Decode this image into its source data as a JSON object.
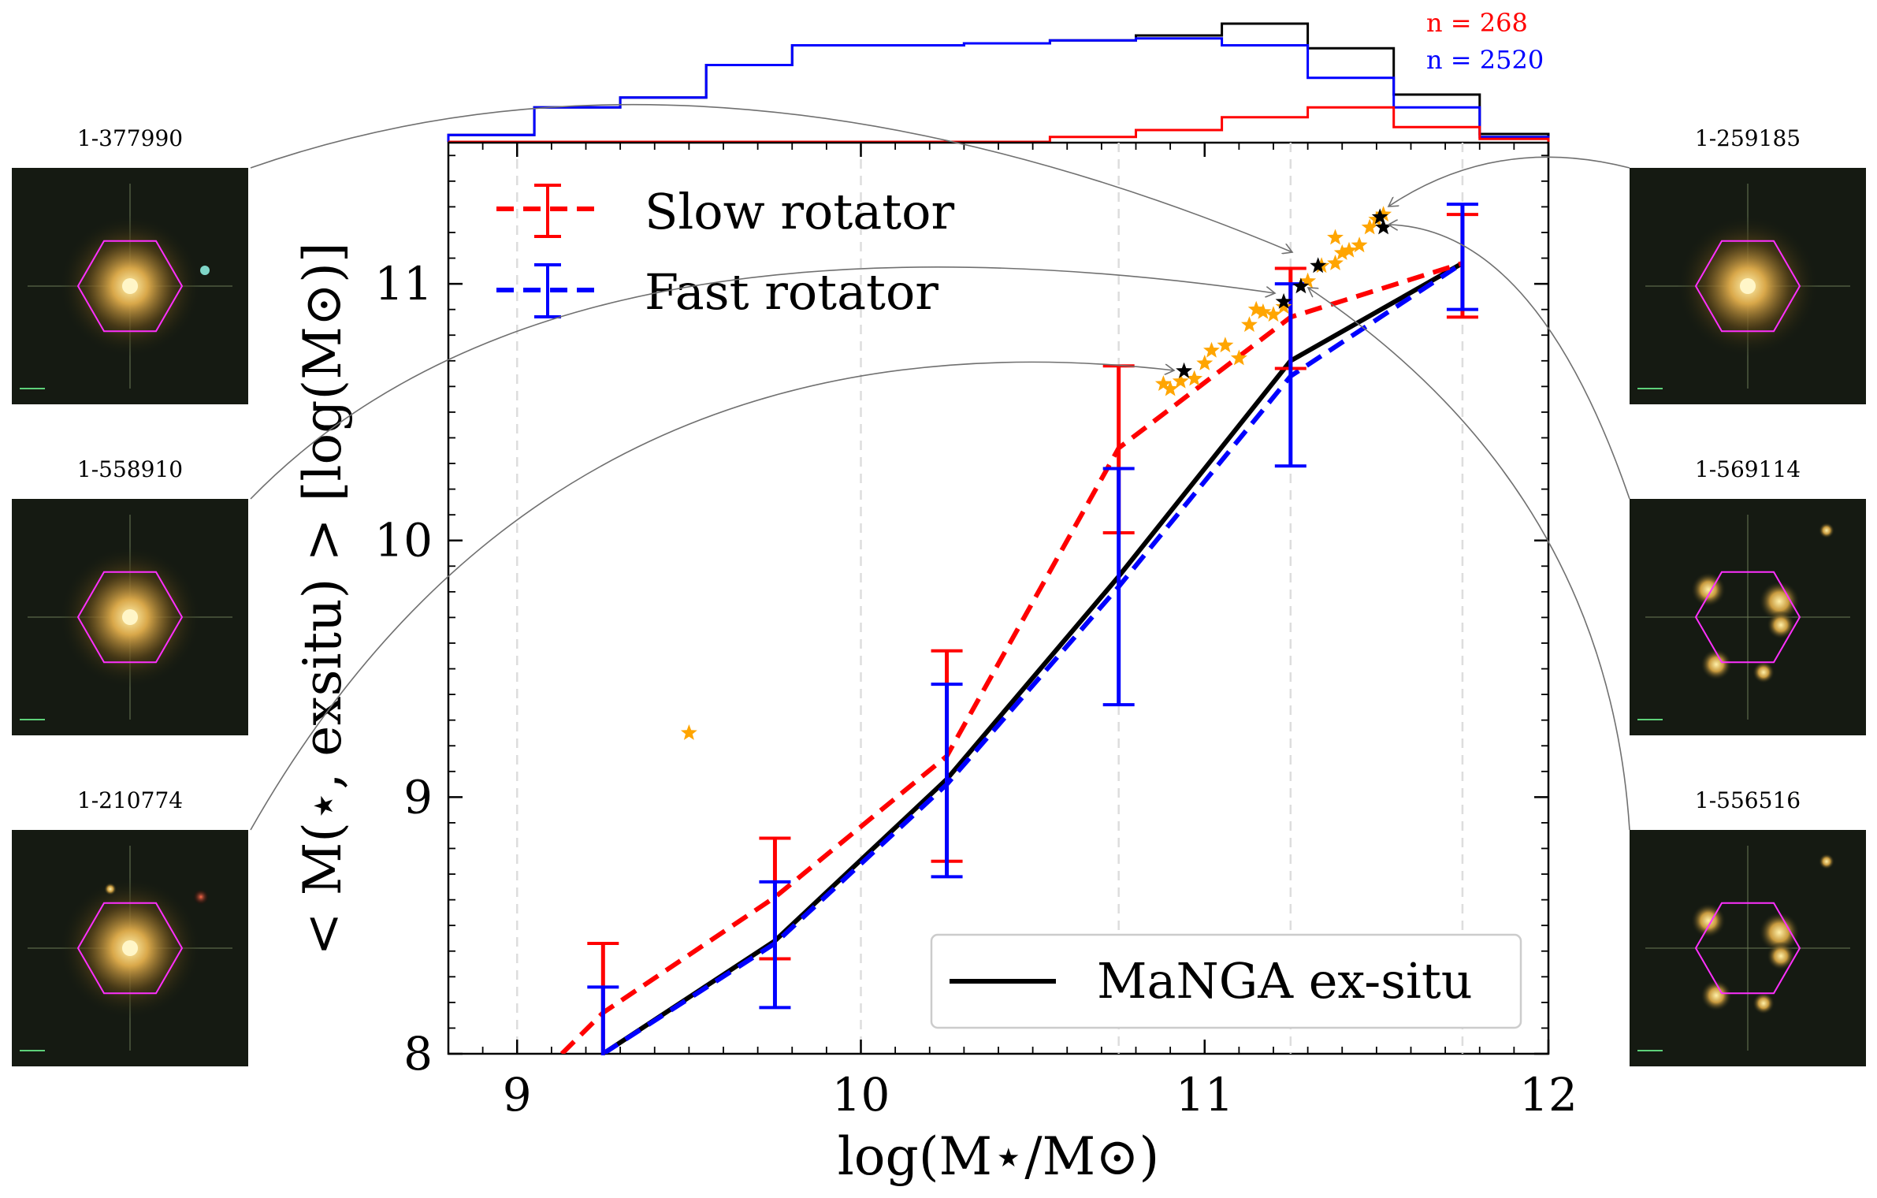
{
  "chart_data": {
    "type": "line",
    "xlabel": "log(M⋆/M⊙)",
    "ylabel": "< M(⋆, exsitu) > [log(M⊙)]",
    "xlim": [
      8.8,
      12.0
    ],
    "ylim": [
      8.0,
      11.55
    ],
    "x_ticks": [
      9,
      10,
      11,
      12
    ],
    "y_ticks": [
      8,
      9,
      10,
      11
    ],
    "vertical_dashed_lines_x": [
      9.0,
      10.0,
      10.75,
      11.25,
      11.75
    ],
    "grid": false,
    "legend_upper": {
      "placement": "top-left",
      "entries": [
        "Slow rotator",
        "Fast rotator"
      ]
    },
    "legend_lower": {
      "placement": "bottom-right",
      "entries": [
        "MaNGA ex-situ"
      ]
    },
    "series": [
      {
        "name": "Slow rotator",
        "color": "#ff0000",
        "style": "dashed",
        "points": [
          [
            9.13,
            8.0
          ],
          [
            9.25,
            8.16
          ],
          [
            9.75,
            8.61
          ],
          [
            10.25,
            9.16
          ],
          [
            10.75,
            10.36
          ],
          [
            11.25,
            10.87
          ],
          [
            11.75,
            11.08
          ]
        ],
        "errorbars": [
          {
            "x": 9.25,
            "low": 7.9,
            "high": 8.43
          },
          {
            "x": 9.75,
            "low": 8.37,
            "high": 8.84
          },
          {
            "x": 10.25,
            "low": 8.75,
            "high": 9.57
          },
          {
            "x": 10.75,
            "low": 10.03,
            "high": 10.68
          },
          {
            "x": 11.25,
            "low": 10.67,
            "high": 11.06
          },
          {
            "x": 11.75,
            "low": 10.87,
            "high": 11.27
          }
        ]
      },
      {
        "name": "Fast rotator",
        "color": "#0000ff",
        "style": "dashed",
        "points": [
          [
            9.25,
            8.0
          ],
          [
            9.75,
            8.43
          ],
          [
            10.25,
            9.05
          ],
          [
            10.75,
            9.82
          ],
          [
            11.25,
            10.64
          ],
          [
            11.75,
            11.08
          ]
        ],
        "errorbars": [
          {
            "x": 9.25,
            "low": 7.9,
            "high": 8.26
          },
          {
            "x": 9.75,
            "low": 8.18,
            "high": 8.67
          },
          {
            "x": 10.25,
            "low": 8.69,
            "high": 9.44
          },
          {
            "x": 10.75,
            "low": 9.36,
            "high": 10.28
          },
          {
            "x": 11.25,
            "low": 10.29,
            "high": 11.0
          },
          {
            "x": 11.75,
            "low": 10.9,
            "high": 11.31
          }
        ]
      },
      {
        "name": "MaNGA ex-situ",
        "color": "#000000",
        "style": "solid",
        "points": [
          [
            9.25,
            8.0
          ],
          [
            9.75,
            8.44
          ],
          [
            10.25,
            9.07
          ],
          [
            10.75,
            9.86
          ],
          [
            11.25,
            10.7
          ],
          [
            11.75,
            11.08
          ]
        ]
      }
    ],
    "scatter_orange_stars": [
      [
        9.5,
        9.25
      ],
      [
        10.88,
        10.61
      ],
      [
        10.9,
        10.59
      ],
      [
        10.93,
        10.62
      ],
      [
        10.97,
        10.63
      ],
      [
        11.0,
        10.69
      ],
      [
        11.02,
        10.74
      ],
      [
        11.06,
        10.76
      ],
      [
        11.1,
        10.71
      ],
      [
        11.13,
        10.84
      ],
      [
        11.15,
        10.9
      ],
      [
        11.17,
        10.89
      ],
      [
        11.2,
        10.88
      ],
      [
        11.23,
        10.91
      ],
      [
        11.3,
        11.01
      ],
      [
        11.34,
        11.07
      ],
      [
        11.38,
        11.08
      ],
      [
        11.4,
        11.12
      ],
      [
        11.42,
        11.13
      ],
      [
        11.45,
        11.15
      ],
      [
        11.48,
        11.22
      ],
      [
        11.5,
        11.25
      ],
      [
        11.38,
        11.18
      ],
      [
        11.52,
        11.27
      ]
    ],
    "scatter_black_stars": [
      [
        10.94,
        10.66
      ],
      [
        11.23,
        10.93
      ],
      [
        11.28,
        10.99
      ],
      [
        11.33,
        11.07
      ],
      [
        11.51,
        11.26
      ],
      [
        11.52,
        11.22
      ]
    ],
    "top_histogram": {
      "bin_edges": [
        8.8,
        9.05,
        9.3,
        9.55,
        9.8,
        10.05,
        10.3,
        10.55,
        10.8,
        11.05,
        11.3,
        11.55,
        11.8,
        12.05
      ],
      "black_counts": [
        0.07,
        0.35,
        0.45,
        0.78,
        0.98,
        0.98,
        1.0,
        1.03,
        1.08,
        1.2,
        0.95,
        0.48,
        0.08
      ],
      "blue_counts": [
        0.07,
        0.35,
        0.45,
        0.78,
        0.98,
        0.98,
        1.0,
        1.03,
        1.05,
        0.98,
        0.65,
        0.35,
        0.05
      ],
      "red_counts": [
        0.0,
        0.0,
        0.0,
        0.0,
        0.0,
        0.0,
        0.0,
        0.05,
        0.12,
        0.25,
        0.35,
        0.15,
        0.03
      ]
    },
    "counts": [
      {
        "text": "n = 268",
        "color": "#ff0000"
      },
      {
        "text": "n = 2520",
        "color": "#0000ff"
      }
    ]
  },
  "thumbnails_left": [
    {
      "label": "1-377990"
    },
    {
      "label": "1-558910"
    },
    {
      "label": "1-210774"
    }
  ],
  "thumbnails_right": [
    {
      "label": "1-259185"
    },
    {
      "label": "1-569114"
    },
    {
      "label": "1-556516"
    }
  ],
  "colors": {
    "slow": "#ff0000",
    "fast": "#0000ff",
    "manga": "#000000",
    "stars": "#ffa500",
    "hex": "#ff30ff"
  }
}
